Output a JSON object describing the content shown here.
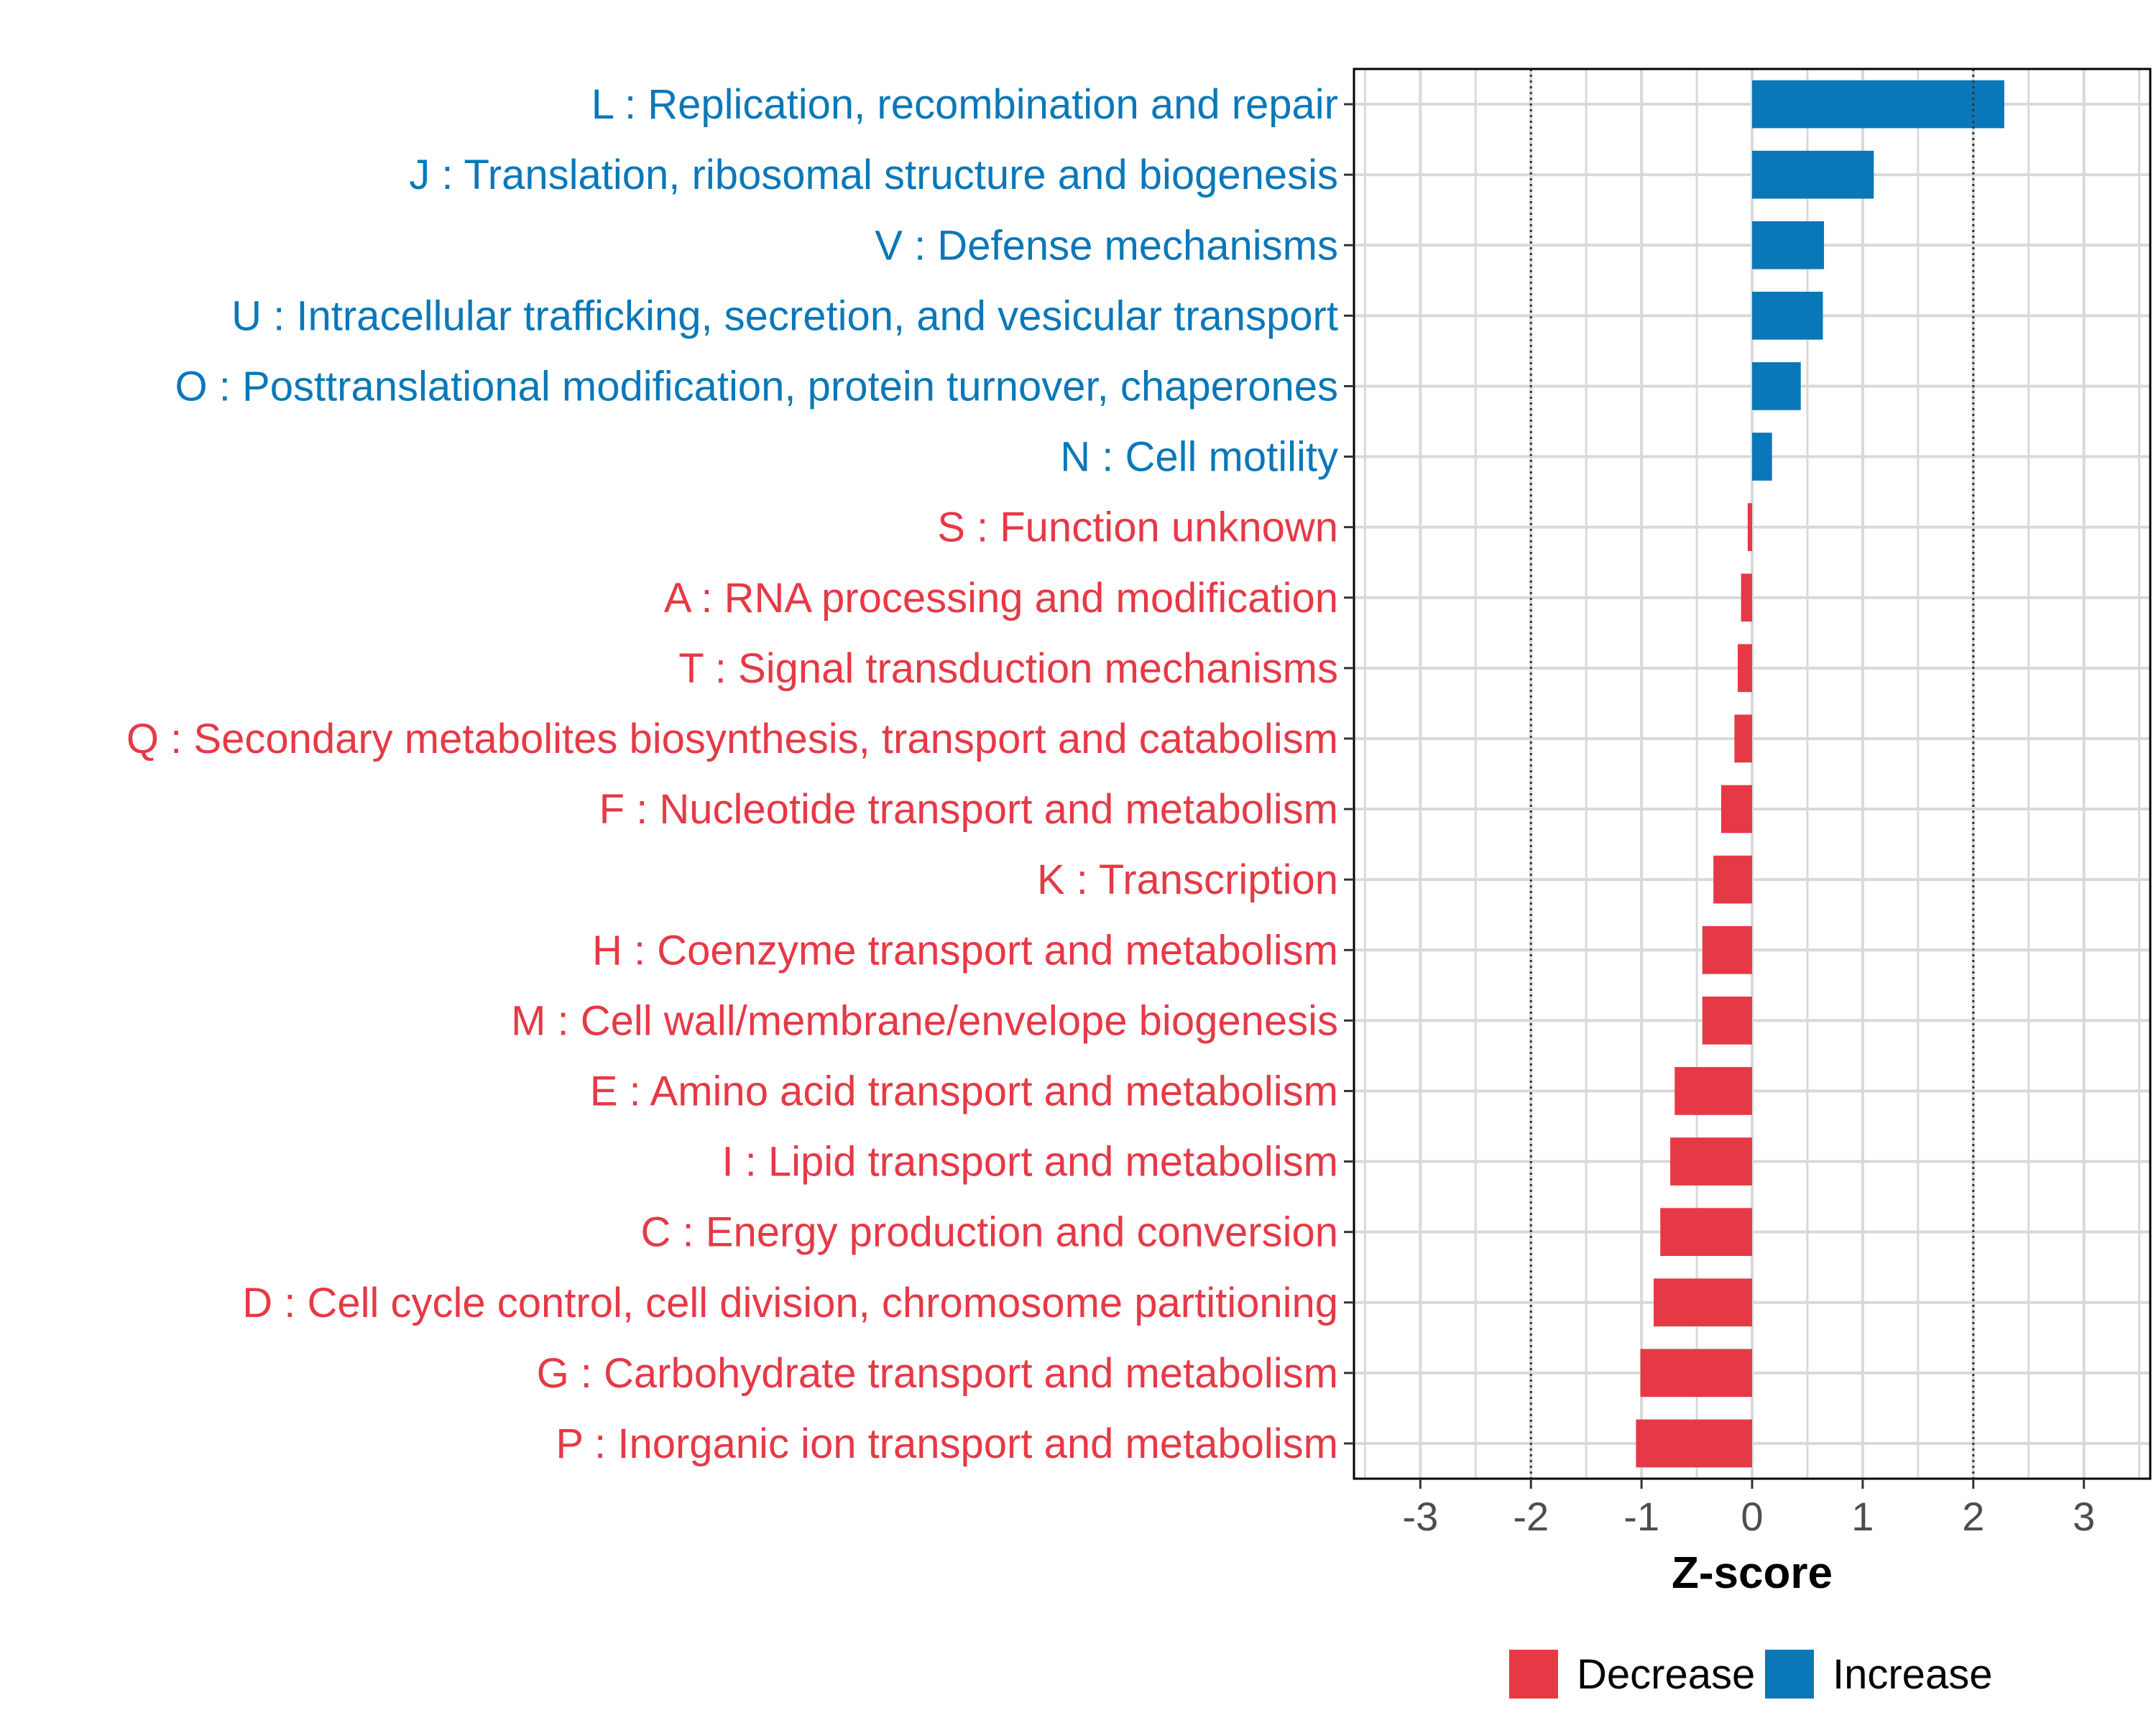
{
  "chart_data": {
    "type": "bar",
    "orientation": "horizontal",
    "title": "",
    "xlabel": "Z-score",
    "ylabel": "",
    "xlim": [
      -3.6,
      3.6
    ],
    "x_ticks": [
      -3,
      -2,
      -1,
      0,
      1,
      2,
      3
    ],
    "x_tick_labels": [
      "-3",
      "-2",
      "-1",
      "0",
      "1",
      "2",
      "3"
    ],
    "reference_lines": [
      -2,
      2
    ],
    "grid": true,
    "legend_position": "bottom",
    "colors": {
      "Decrease": "#e63946",
      "Increase": "#0a78b8"
    },
    "legend": [
      {
        "label": "Decrease",
        "color": "#e63946"
      },
      {
        "label": "Increase",
        "color": "#0a78b8"
      }
    ],
    "categories": [
      {
        "label": "L : Replication, recombination and repair",
        "value": 2.28,
        "direction": "Increase"
      },
      {
        "label": "J : Translation, ribosomal structure and biogenesis",
        "value": 1.1,
        "direction": "Increase"
      },
      {
        "label": "V : Defense mechanisms",
        "value": 0.65,
        "direction": "Increase"
      },
      {
        "label": "U : Intracellular trafficking, secretion, and vesicular transport",
        "value": 0.64,
        "direction": "Increase"
      },
      {
        "label": "O : Posttranslational modification, protein turnover, chaperones",
        "value": 0.44,
        "direction": "Increase"
      },
      {
        "label": "N : Cell motility",
        "value": 0.18,
        "direction": "Increase"
      },
      {
        "label": "S : Function unknown",
        "value": -0.04,
        "direction": "Decrease"
      },
      {
        "label": "A : RNA processing and modification",
        "value": -0.1,
        "direction": "Decrease"
      },
      {
        "label": "T : Signal transduction mechanisms",
        "value": -0.13,
        "direction": "Decrease"
      },
      {
        "label": "Q : Secondary metabolites biosynthesis, transport and catabolism",
        "value": -0.16,
        "direction": "Decrease"
      },
      {
        "label": "F : Nucleotide transport and metabolism",
        "value": -0.28,
        "direction": "Decrease"
      },
      {
        "label": "K : Transcription",
        "value": -0.35,
        "direction": "Decrease"
      },
      {
        "label": "H : Coenzyme transport and metabolism",
        "value": -0.45,
        "direction": "Decrease"
      },
      {
        "label": "M : Cell wall/membrane/envelope biogenesis",
        "value": -0.45,
        "direction": "Decrease"
      },
      {
        "label": "E : Amino acid transport and metabolism",
        "value": -0.7,
        "direction": "Decrease"
      },
      {
        "label": "I : Lipid transport and metabolism",
        "value": -0.74,
        "direction": "Decrease"
      },
      {
        "label": "C : Energy production and conversion",
        "value": -0.83,
        "direction": "Decrease"
      },
      {
        "label": "D : Cell cycle control, cell division, chromosome partitioning",
        "value": -0.89,
        "direction": "Decrease"
      },
      {
        "label": "G : Carbohydrate transport and metabolism",
        "value": -1.01,
        "direction": "Decrease"
      },
      {
        "label": "P : Inorganic ion transport and metabolism",
        "value": -1.05,
        "direction": "Decrease"
      }
    ]
  }
}
